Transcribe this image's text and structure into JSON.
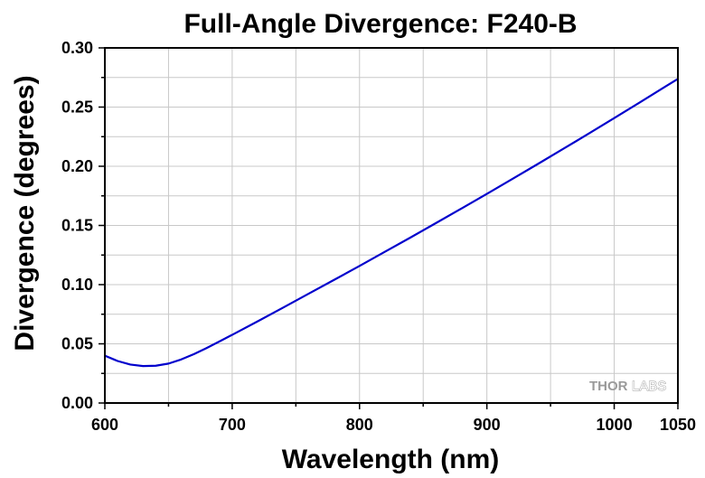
{
  "chart_data": {
    "type": "line",
    "title": "Full-Angle Divergence: F240-B",
    "xlabel": "Wavelength (nm)",
    "ylabel": "Divergence (degrees)",
    "xlim": [
      600,
      1050
    ],
    "ylim": [
      0.0,
      0.3
    ],
    "xticks": [
      600,
      700,
      800,
      900,
      1000,
      1050
    ],
    "xtick_labels": [
      "600",
      "700",
      "800",
      "900",
      "1000",
      "1050"
    ],
    "yticks": [
      0.0,
      0.05,
      0.1,
      0.15,
      0.2,
      0.25,
      0.3
    ],
    "ytick_labels": [
      "0.00",
      "0.05",
      "0.10",
      "0.15",
      "0.20",
      "0.25",
      "0.30"
    ],
    "grid": true,
    "series": [
      {
        "color": "#0000cc",
        "x": [
          600,
          610,
          620,
          630,
          640,
          650,
          660,
          670,
          680,
          690,
          700,
          720,
          740,
          760,
          780,
          800,
          820,
          840,
          860,
          880,
          900,
          920,
          940,
          960,
          980,
          1000,
          1020,
          1040,
          1050
        ],
        "y": [
          0.04,
          0.0355,
          0.0325,
          0.0312,
          0.0315,
          0.0333,
          0.0368,
          0.0413,
          0.0465,
          0.052,
          0.0576,
          0.069,
          0.0806,
          0.0923,
          0.104,
          0.1158,
          0.1278,
          0.1398,
          0.152,
          0.1643,
          0.1767,
          0.1893,
          0.2019,
          0.2147,
          0.2276,
          0.2407,
          0.2539,
          0.2672,
          0.2738
        ]
      }
    ]
  },
  "watermark": {
    "brand_bold": "THOR",
    "brand_light": "LABS"
  }
}
